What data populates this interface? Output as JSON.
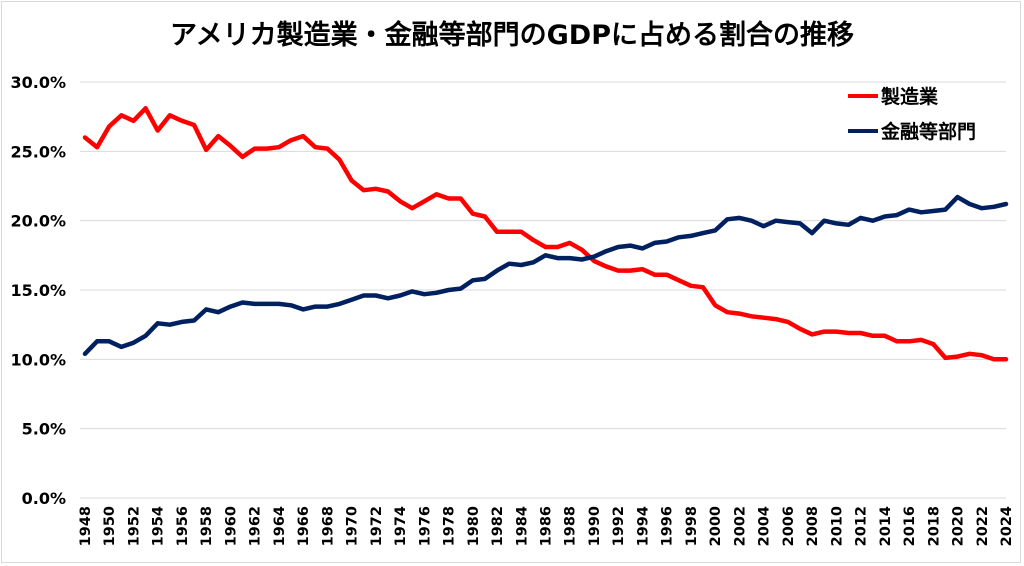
{
  "chart_data": {
    "type": "line",
    "title": "アメリカ製造業・金融等部門のGDPに占める割合の推移",
    "xlabel": "",
    "ylabel": "",
    "ylim": [
      0,
      30
    ],
    "yticks": [
      "0.0%",
      "5.0%",
      "10.0%",
      "15.0%",
      "20.0%",
      "25.0%",
      "30.0%"
    ],
    "ytick_values": [
      0,
      5,
      10,
      15,
      20,
      25,
      30
    ],
    "xlim": [
      1948,
      2024
    ],
    "xtick_labels": [
      "1948",
      "1950",
      "1952",
      "1954",
      "1956",
      "1958",
      "1960",
      "1962",
      "1964",
      "1966",
      "1968",
      "1970",
      "1972",
      "1974",
      "1976",
      "1978",
      "1980",
      "1982",
      "1984",
      "1986",
      "1988",
      "1990",
      "1992",
      "1994",
      "1996",
      "1998",
      "2000",
      "2002",
      "2004",
      "2006",
      "2008",
      "2010",
      "2012",
      "2014",
      "2016",
      "2018",
      "2020",
      "2022",
      "2024"
    ],
    "grid": true,
    "legend_position": "top-right",
    "x": [
      1948,
      1949,
      1950,
      1951,
      1952,
      1953,
      1954,
      1955,
      1956,
      1957,
      1958,
      1959,
      1960,
      1961,
      1962,
      1963,
      1964,
      1965,
      1966,
      1967,
      1968,
      1969,
      1970,
      1971,
      1972,
      1973,
      1974,
      1975,
      1976,
      1977,
      1978,
      1979,
      1980,
      1981,
      1982,
      1983,
      1984,
      1985,
      1986,
      1987,
      1988,
      1989,
      1990,
      1991,
      1992,
      1993,
      1994,
      1995,
      1996,
      1997,
      1998,
      1999,
      2000,
      2001,
      2002,
      2003,
      2004,
      2005,
      2006,
      2007,
      2008,
      2009,
      2010,
      2011,
      2012,
      2013,
      2014,
      2015,
      2016,
      2017,
      2018,
      2019,
      2020,
      2021,
      2022,
      2023,
      2024
    ],
    "series": [
      {
        "name": "製造業",
        "color": "#ff0000",
        "values": [
          26.0,
          25.3,
          26.8,
          27.6,
          27.2,
          28.1,
          26.5,
          27.6,
          27.2,
          26.9,
          25.1,
          26.1,
          25.4,
          24.6,
          25.2,
          25.2,
          25.3,
          25.8,
          26.1,
          25.3,
          25.2,
          24.4,
          22.9,
          22.2,
          22.3,
          22.1,
          21.4,
          20.9,
          21.4,
          21.9,
          21.6,
          21.6,
          20.5,
          20.3,
          19.2,
          19.2,
          19.2,
          18.6,
          18.1,
          18.1,
          18.4,
          17.9,
          17.1,
          16.7,
          16.4,
          16.4,
          16.5,
          16.1,
          16.1,
          15.7,
          15.3,
          15.2,
          13.9,
          13.4,
          13.3,
          13.1,
          13.0,
          12.9,
          12.7,
          12.2,
          11.8,
          12.0,
          12.0,
          11.9,
          11.9,
          11.7,
          11.7,
          11.3,
          11.3,
          11.4,
          11.1,
          10.1,
          10.2,
          10.4,
          10.3,
          10.0,
          10.0
        ]
      },
      {
        "name": "金融等部門",
        "color": "#002060",
        "values": [
          10.4,
          11.3,
          11.3,
          10.9,
          11.2,
          11.7,
          12.6,
          12.5,
          12.7,
          12.8,
          13.6,
          13.4,
          13.8,
          14.1,
          14.0,
          14.0,
          14.0,
          13.9,
          13.6,
          13.8,
          13.8,
          14.0,
          14.3,
          14.6,
          14.6,
          14.4,
          14.6,
          14.9,
          14.7,
          14.8,
          15.0,
          15.1,
          15.7,
          15.8,
          16.4,
          16.9,
          16.8,
          17.0,
          17.5,
          17.3,
          17.3,
          17.2,
          17.4,
          17.8,
          18.1,
          18.2,
          18.0,
          18.4,
          18.5,
          18.8,
          18.9,
          19.1,
          19.3,
          20.1,
          20.2,
          20.0,
          19.6,
          20.0,
          19.9,
          19.8,
          19.1,
          20.0,
          19.8,
          19.7,
          20.2,
          20.0,
          20.3,
          20.4,
          20.8,
          20.6,
          20.7,
          20.8,
          21.7,
          21.2,
          20.9,
          21.0,
          21.2
        ]
      }
    ]
  }
}
